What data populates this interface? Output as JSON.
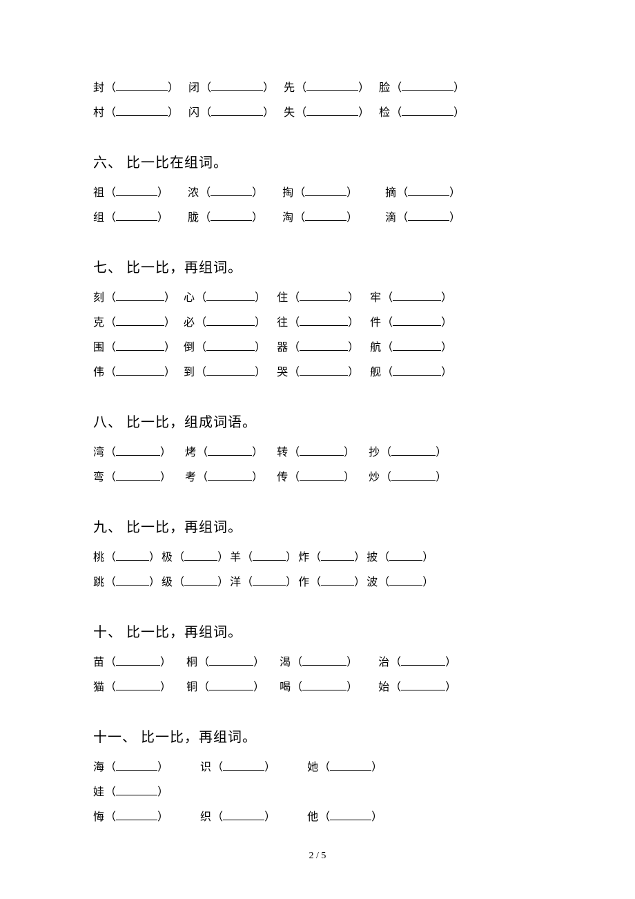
{
  "top_rows": [
    {
      "items": [
        {
          "char": "封",
          "blank_w": 75,
          "gap_after": 14
        },
        {
          "char": "闭",
          "blank_w": 75,
          "gap_after": 14
        },
        {
          "char": "先",
          "blank_w": 75,
          "gap_after": 14
        },
        {
          "char": "脸",
          "blank_w": 75,
          "gap_after": 0
        }
      ]
    },
    {
      "items": [
        {
          "char": "村",
          "blank_w": 75,
          "gap_after": 14
        },
        {
          "char": "闪",
          "blank_w": 75,
          "gap_after": 14
        },
        {
          "char": "失",
          "blank_w": 75,
          "gap_after": 14
        },
        {
          "char": "检",
          "blank_w": 75,
          "gap_after": 0
        }
      ]
    }
  ],
  "sections": [
    {
      "heading": "六、 比一比在组词。",
      "rows": [
        {
          "items": [
            {
              "char": "祖",
              "blank_w": 60,
              "gap_after": 28
            },
            {
              "char": "浓",
              "blank_w": 60,
              "gap_after": 28
            },
            {
              "char": "掏",
              "blank_w": 60,
              "gap_after": 40
            },
            {
              "char": "摘",
              "blank_w": 60,
              "gap_after": 0
            }
          ]
        },
        {
          "items": [
            {
              "char": "组",
              "blank_w": 60,
              "gap_after": 28
            },
            {
              "char": "胧",
              "blank_w": 60,
              "gap_after": 28
            },
            {
              "char": "淘",
              "blank_w": 60,
              "gap_after": 40
            },
            {
              "char": "滴",
              "blank_w": 60,
              "gap_after": 0
            }
          ]
        }
      ]
    },
    {
      "heading": "七、 比一比，再组词。",
      "rows": [
        {
          "items": [
            {
              "char": "刻",
              "blank_w": 70,
              "gap_after": 12
            },
            {
              "char": "心",
              "blank_w": 70,
              "gap_after": 16
            },
            {
              "char": "住",
              "blank_w": 70,
              "gap_after": 16
            },
            {
              "char": "牢",
              "blank_w": 70,
              "gap_after": 0
            }
          ]
        },
        {
          "items": [
            {
              "char": "克",
              "blank_w": 70,
              "gap_after": 12
            },
            {
              "char": "必",
              "blank_w": 70,
              "gap_after": 16
            },
            {
              "char": "往",
              "blank_w": 70,
              "gap_after": 16
            },
            {
              "char": "件",
              "blank_w": 70,
              "gap_after": 0
            }
          ]
        },
        {
          "items": [
            {
              "char": "围",
              "blank_w": 70,
              "gap_after": 12
            },
            {
              "char": "倒",
              "blank_w": 70,
              "gap_after": 16
            },
            {
              "char": "器",
              "blank_w": 70,
              "gap_after": 16
            },
            {
              "char": "航",
              "blank_w": 70,
              "gap_after": 0
            }
          ]
        },
        {
          "items": [
            {
              "char": "伟",
              "blank_w": 70,
              "gap_after": 12
            },
            {
              "char": "到",
              "blank_w": 70,
              "gap_after": 16
            },
            {
              "char": "哭",
              "blank_w": 70,
              "gap_after": 16
            },
            {
              "char": "舰",
              "blank_w": 70,
              "gap_after": 0
            }
          ]
        }
      ]
    },
    {
      "heading": "八、 比一比，组成词语。",
      "rows": [
        {
          "items": [
            {
              "char": "湾",
              "blank_w": 64,
              "gap_after": 20
            },
            {
              "char": "烤",
              "blank_w": 64,
              "gap_after": 20
            },
            {
              "char": "转",
              "blank_w": 64,
              "gap_after": 20
            },
            {
              "char": "抄",
              "blank_w": 64,
              "gap_after": 0
            }
          ]
        },
        {
          "items": [
            {
              "char": "弯",
              "blank_w": 64,
              "gap_after": 20
            },
            {
              "char": "考",
              "blank_w": 64,
              "gap_after": 20
            },
            {
              "char": "传",
              "blank_w": 64,
              "gap_after": 20
            },
            {
              "char": "炒",
              "blank_w": 64,
              "gap_after": 0
            }
          ]
        }
      ]
    },
    {
      "heading": "九、 比一比，再组词。",
      "rows": [
        {
          "items": [
            {
              "char": "桃",
              "blank_w": 48,
              "gap_after": 2
            },
            {
              "char": "极",
              "blank_w": 48,
              "gap_after": 2
            },
            {
              "char": "羊",
              "blank_w": 48,
              "gap_after": 2
            },
            {
              "char": "炸",
              "blank_w": 48,
              "gap_after": 2
            },
            {
              "char": "披",
              "blank_w": 48,
              "gap_after": 0
            }
          ]
        },
        {
          "items": [
            {
              "char": "跳",
              "blank_w": 48,
              "gap_after": 2
            },
            {
              "char": "级",
              "blank_w": 48,
              "gap_after": 2
            },
            {
              "char": "洋",
              "blank_w": 48,
              "gap_after": 2
            },
            {
              "char": "作",
              "blank_w": 48,
              "gap_after": 2
            },
            {
              "char": "波",
              "blank_w": 48,
              "gap_after": 0
            }
          ]
        }
      ]
    },
    {
      "heading": "十、 比一比，再组词。",
      "rows": [
        {
          "items": [
            {
              "char": "苗",
              "blank_w": 64,
              "gap_after": 22
            },
            {
              "char": "桐",
              "blank_w": 64,
              "gap_after": 22
            },
            {
              "char": "渴",
              "blank_w": 64,
              "gap_after": 30
            },
            {
              "char": "治",
              "blank_w": 64,
              "gap_after": 0
            }
          ]
        },
        {
          "items": [
            {
              "char": "猫",
              "blank_w": 64,
              "gap_after": 22
            },
            {
              "char": "铜",
              "blank_w": 64,
              "gap_after": 22
            },
            {
              "char": "喝",
              "blank_w": 64,
              "gap_after": 30
            },
            {
              "char": "始",
              "blank_w": 64,
              "gap_after": 0
            }
          ]
        }
      ]
    },
    {
      "heading": "十一、 比一比，再组词。",
      "rows": [
        {
          "items": [
            {
              "char": "海",
              "blank_w": 60,
              "gap_after": 46
            },
            {
              "char": "识",
              "blank_w": 60,
              "gap_after": 46
            },
            {
              "char": "她",
              "blank_w": 60,
              "gap_after": 0
            }
          ]
        },
        {
          "items": [
            {
              "char": "娃",
              "blank_w": 60,
              "gap_after": 0
            }
          ]
        },
        {
          "items": [
            {
              "char": "悔",
              "blank_w": 60,
              "gap_after": 46
            },
            {
              "char": "织",
              "blank_w": 60,
              "gap_after": 46
            },
            {
              "char": "他",
              "blank_w": 60,
              "gap_after": 0
            }
          ]
        }
      ]
    }
  ],
  "page_number": "2 / 5"
}
